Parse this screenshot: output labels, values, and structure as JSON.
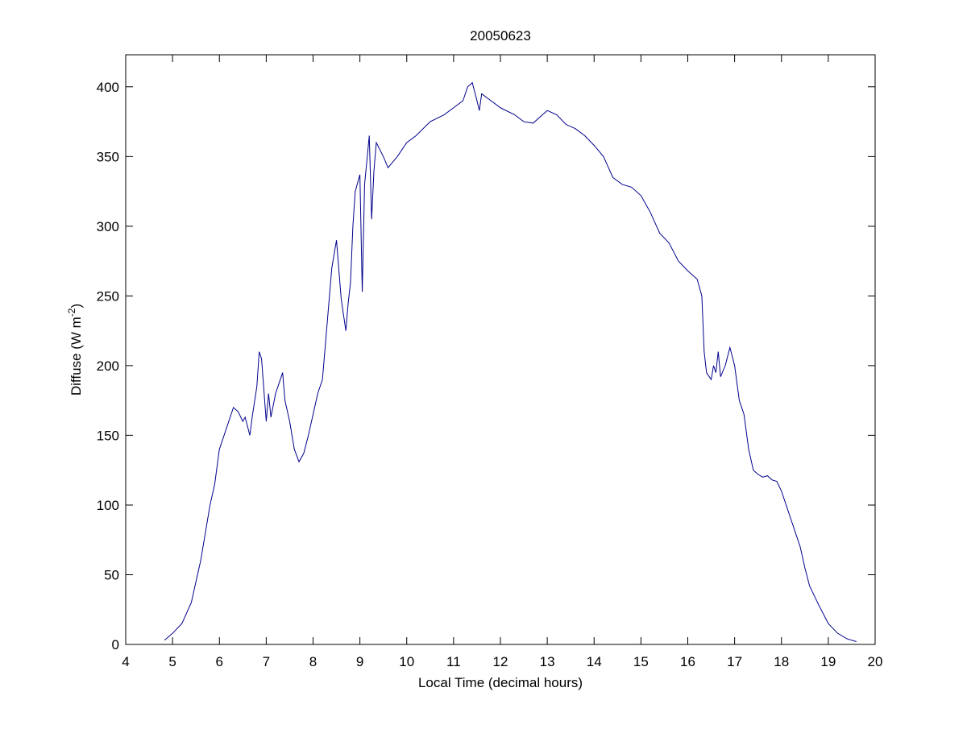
{
  "chart_data": {
    "type": "line",
    "title": "20050623",
    "xlabel": "Local Time (decimal hours)",
    "ylabel": {
      "text": "Diffuse (W m",
      "superscript": "-2",
      "suffix": ")"
    },
    "xlim": [
      4,
      20
    ],
    "xticks": [
      4,
      5,
      6,
      7,
      8,
      9,
      10,
      11,
      12,
      13,
      14,
      15,
      16,
      17,
      18,
      19,
      20
    ],
    "ylim": [
      0,
      423
    ],
    "yticks": [
      0,
      50,
      100,
      150,
      200,
      250,
      300,
      350,
      400
    ],
    "grid": false,
    "series": [
      {
        "color": "#00008b",
        "x": [
          4.83,
          5.0,
          5.2,
          5.4,
          5.6,
          5.8,
          5.9,
          6.0,
          6.1,
          6.2,
          6.3,
          6.4,
          6.5,
          6.55,
          6.65,
          6.7,
          6.8,
          6.85,
          6.9,
          7.0,
          7.05,
          7.1,
          7.2,
          7.35,
          7.4,
          7.5,
          7.6,
          7.7,
          7.8,
          7.9,
          8.0,
          8.1,
          8.2,
          8.3,
          8.4,
          8.5,
          8.6,
          8.7,
          8.75,
          8.8,
          8.85,
          8.9,
          9.0,
          9.05,
          9.1,
          9.2,
          9.25,
          9.3,
          9.35,
          9.5,
          9.6,
          9.8,
          10.0,
          10.2,
          10.5,
          10.8,
          11.0,
          11.2,
          11.3,
          11.4,
          11.5,
          11.55,
          11.6,
          11.8,
          12.0,
          12.3,
          12.5,
          12.7,
          12.9,
          13.0,
          13.2,
          13.4,
          13.6,
          13.8,
          14.0,
          14.2,
          14.4,
          14.6,
          14.8,
          15.0,
          15.2,
          15.4,
          15.6,
          15.8,
          16.0,
          16.2,
          16.3,
          16.35,
          16.4,
          16.5,
          16.55,
          16.6,
          16.65,
          16.7,
          16.8,
          16.9,
          17.0,
          17.1,
          17.2,
          17.3,
          17.4,
          17.5,
          17.6,
          17.7,
          17.8,
          17.9,
          18.0,
          18.1,
          18.2,
          18.3,
          18.4,
          18.5,
          18.6,
          18.8,
          19.0,
          19.2,
          19.4,
          19.6
        ],
        "values": [
          3,
          8,
          15,
          30,
          60,
          100,
          115,
          140,
          150,
          160,
          170,
          167,
          160,
          163,
          150,
          163,
          185,
          210,
          205,
          160,
          180,
          163,
          180,
          195,
          175,
          160,
          140,
          131,
          137,
          150,
          165,
          180,
          190,
          230,
          270,
          290,
          248,
          225,
          245,
          260,
          300,
          325,
          337,
          253,
          330,
          365,
          305,
          340,
          360,
          350,
          342,
          350,
          360,
          365,
          375,
          380,
          385,
          390,
          400,
          403,
          390,
          383,
          395,
          390,
          385,
          380,
          375,
          374,
          380,
          383,
          380,
          373,
          370,
          365,
          358,
          350,
          335,
          330,
          328,
          322,
          310,
          295,
          288,
          275,
          268,
          262,
          250,
          210,
          195,
          190,
          200,
          195,
          210,
          192,
          200,
          213,
          200,
          175,
          165,
          140,
          125,
          122,
          120,
          121,
          118,
          117,
          110,
          100,
          90,
          80,
          70,
          55,
          42,
          28,
          15,
          8,
          4,
          2
        ]
      }
    ]
  }
}
